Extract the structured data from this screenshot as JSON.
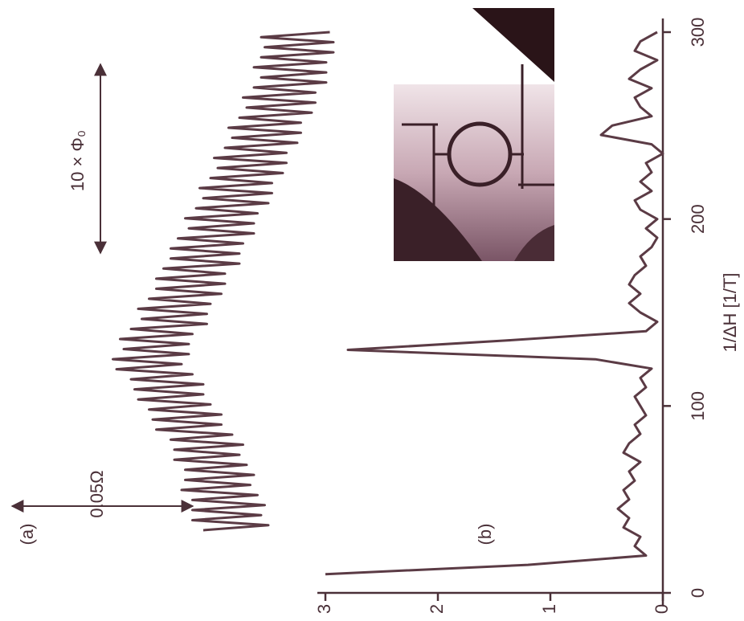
{
  "chart_data": [
    {
      "type": "line",
      "label": "(a)",
      "color": "#5b3b45",
      "annotations": [
        "0.05Ω",
        "10 × Φ₀"
      ],
      "values": [
        0.046,
        0.028,
        0.049,
        0.03,
        0.049,
        0.029,
        0.049,
        0.031,
        0.052,
        0.033,
        0.051,
        0.032,
        0.051,
        0.034,
        0.054,
        0.036,
        0.054,
        0.035,
        0.055,
        0.038,
        0.059,
        0.041,
        0.06,
        0.041,
        0.061,
        0.044,
        0.064,
        0.046,
        0.065,
        0.046,
        0.066,
        0.049,
        0.07,
        0.052,
        0.071,
        0.05,
        0.068,
        0.05,
        0.069,
        0.049,
        0.066,
        0.045,
        0.063,
        0.045,
        0.064,
        0.044,
        0.061,
        0.041,
        0.059,
        0.04,
        0.059,
        0.04,
        0.057,
        0.036,
        0.055,
        0.036,
        0.055,
        0.035,
        0.053,
        0.032,
        0.05,
        0.032,
        0.051,
        0.031,
        0.048,
        0.028,
        0.046,
        0.027,
        0.047,
        0.027,
        0.044,
        0.024,
        0.042,
        0.023,
        0.043,
        0.023,
        0.04,
        0.02,
        0.038,
        0.019,
        0.039,
        0.019,
        0.036,
        0.016,
        0.034,
        0.015,
        0.035,
        0.015,
        0.032,
        0.012,
        0.03,
        0.012,
        0.032,
        0.012,
        0.03,
        0.01,
        0.029,
        0.01,
        0.03,
        0.011
      ]
    },
    {
      "type": "line",
      "label": "(b)",
      "color": "#5b3b45",
      "xlabel": "1/ΔH [1/T]",
      "xlim": [
        0,
        300
      ],
      "xticks": [
        0,
        100,
        200,
        300
      ],
      "ylim": [
        0,
        3
      ],
      "yticks": [
        0,
        1,
        2,
        3
      ],
      "x": [
        10,
        15,
        20,
        25,
        30,
        35,
        40,
        45,
        50,
        55,
        60,
        65,
        70,
        75,
        80,
        85,
        90,
        95,
        100,
        105,
        110,
        115,
        120,
        125,
        130,
        135,
        140,
        145,
        150,
        155,
        160,
        165,
        170,
        175,
        180,
        185,
        190,
        195,
        200,
        205,
        210,
        215,
        220,
        225,
        230,
        235,
        240,
        245,
        250,
        255,
        260,
        265,
        270,
        275,
        280,
        285,
        290,
        295,
        300
      ],
      "values": [
        3.0,
        1.2,
        0.15,
        0.25,
        0.2,
        0.35,
        0.3,
        0.4,
        0.3,
        0.35,
        0.25,
        0.3,
        0.2,
        0.35,
        0.3,
        0.2,
        0.25,
        0.15,
        0.2,
        0.25,
        0.15,
        0.2,
        0.1,
        0.6,
        2.8,
        1.4,
        0.15,
        0.05,
        0.2,
        0.3,
        0.2,
        0.3,
        0.25,
        0.15,
        0.2,
        0.1,
        0.05,
        0.15,
        0.05,
        0.2,
        0.25,
        0.1,
        0.2,
        0.1,
        0.15,
        0.0,
        0.1,
        0.55,
        0.45,
        0.1,
        0.2,
        0.25,
        0.1,
        0.3,
        0.2,
        0.05,
        0.25,
        0.2,
        0.05
      ]
    }
  ]
}
